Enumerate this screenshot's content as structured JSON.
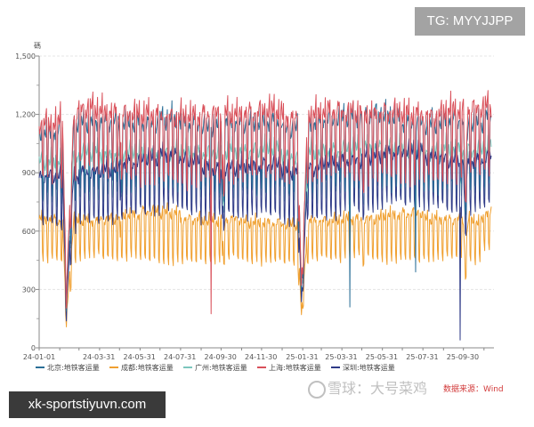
{
  "overlays": {
    "tg_badge": "TG: MYYJJPP",
    "site_badge": "xk-sportstiyuvn.com",
    "watermark": "雪球：大号菜鸡",
    "source": "数据来源：Wind"
  },
  "chart_data": {
    "type": "line",
    "title": "",
    "ylabel": "碼",
    "xlabel": "",
    "ylim": [
      0,
      1500
    ],
    "yticks": [
      0,
      300,
      600,
      900,
      1200,
      1500
    ],
    "ytick_labels": [
      "0",
      "300",
      "600",
      "900",
      "1,200",
      "1,500"
    ],
    "x_start": "2024-01-01",
    "x_end": "2025-11-12",
    "xtick_labels": [
      "24-01-01",
      "24-03-31",
      "24-05-31",
      "24-07-31",
      "24-09-30",
      "24-11-30",
      "25-01-31",
      "25-03-31",
      "25-05-31",
      "25-07-31",
      "25-09-30"
    ],
    "xtick_dates": [
      "2024-01-01",
      "2024-03-31",
      "2024-05-31",
      "2024-07-31",
      "2024-09-30",
      "2024-11-30",
      "2025-01-31",
      "2025-03-31",
      "2025-05-31",
      "2025-07-31",
      "2025-09-30"
    ],
    "grid": true,
    "legend_position": "bottom",
    "months": [
      "2024-01",
      "2024-02",
      "2024-03",
      "2024-04",
      "2024-05",
      "2024-06",
      "2024-07",
      "2024-08",
      "2024-09",
      "2024-10",
      "2024-11",
      "2024-12",
      "2025-01",
      "2025-02",
      "2025-03",
      "2025-04",
      "2025-05",
      "2025-06",
      "2025-07",
      "2025-08",
      "2025-09",
      "2025-10",
      "2025-11"
    ],
    "holidays": [
      {
        "start": "2024-02-05",
        "trough": "2024-02-11",
        "end": "2024-02-22",
        "min_factor": 0.24
      },
      {
        "start": "2024-05-01",
        "trough": "2024-05-02",
        "end": "2024-05-05",
        "min_factor": 0.82
      },
      {
        "start": "2024-10-01",
        "trough": "2024-10-03",
        "end": "2024-10-07",
        "min_factor": 0.72
      },
      {
        "start": "2025-01-24",
        "trough": "2025-01-30",
        "end": "2025-02-09",
        "min_factor": 0.27
      },
      {
        "start": "2025-05-01",
        "trough": "2025-05-02",
        "end": "2025-05-05",
        "min_factor": 0.82
      },
      {
        "start": "2025-10-01",
        "trough": "2025-10-03",
        "end": "2025-10-08",
        "min_factor": 0.72
      }
    ],
    "series": [
      {
        "name": "成都:地铁客运量",
        "color": "#f0a030",
        "weekday_monthly": [
          660,
          650,
          650,
          660,
          680,
          700,
          690,
          660,
          650,
          660,
          640,
          640,
          630,
          650,
          650,
          660,
          660,
          680,
          690,
          660,
          660,
          650,
          700
        ],
        "weekend_monthly": [
          460,
          450,
          480,
          470,
          480,
          460,
          450,
          450,
          460,
          470,
          460,
          450,
          450,
          460,
          470,
          480,
          470,
          460,
          460,
          470,
          470,
          460,
          520
        ],
        "anomalies": []
      },
      {
        "name": "广州:地铁客运量",
        "color": "#7cc6bd",
        "weekday_monthly": [
          950,
          980,
          1000,
          990,
          1000,
          990,
          1000,
          1000,
          1000,
          1010,
          1010,
          1020,
          980,
          1000,
          1010,
          1020,
          1030,
          1020,
          1010,
          1000,
          1020,
          1010,
          1030
        ],
        "weekend_monthly": [
          780,
          760,
          800,
          800,
          810,
          800,
          820,
          800,
          790,
          800,
          810,
          820,
          780,
          800,
          810,
          820,
          830,
          820,
          800,
          800,
          810,
          820,
          830
        ],
        "anomalies": []
      },
      {
        "name": "深圳:地铁客运量",
        "color": "#2e3a87",
        "weekday_monthly": [
          880,
          880,
          900,
          910,
          950,
          970,
          990,
          960,
          920,
          920,
          930,
          940,
          900,
          920,
          950,
          960,
          980,
          1000,
          1010,
          980,
          960,
          960,
          980
        ],
        "weekend_monthly": [
          650,
          620,
          660,
          680,
          700,
          720,
          740,
          720,
          680,
          700,
          700,
          700,
          660,
          680,
          700,
          720,
          740,
          760,
          760,
          740,
          720,
          720,
          740
        ],
        "anomalies": [
          {
            "date": "2025-09-26",
            "value": 40
          }
        ]
      },
      {
        "name": "北京:地铁客运量",
        "color": "#2a6f97",
        "weekday_monthly": [
          1100,
          1150,
          1150,
          1160,
          1150,
          1150,
          1170,
          1150,
          1130,
          1150,
          1150,
          1160,
          1120,
          1150,
          1170,
          1180,
          1200,
          1180,
          1150,
          1140,
          1170,
          1150,
          1180
        ],
        "weekend_monthly": [
          820,
          800,
          850,
          870,
          860,
          850,
          860,
          850,
          840,
          850,
          840,
          850,
          820,
          850,
          870,
          860,
          870,
          860,
          850,
          840,
          860,
          860,
          870
        ],
        "anomalies": [
          {
            "date": "2025-04-13",
            "value": 210
          },
          {
            "date": "2025-07-21",
            "value": 390
          }
        ]
      },
      {
        "name": "上海:地铁客运量",
        "color": "#d9505a",
        "weekday_monthly": [
          1150,
          1200,
          1230,
          1210,
          1200,
          1200,
          1180,
          1190,
          1200,
          1200,
          1210,
          1220,
          1180,
          1200,
          1220,
          1210,
          1200,
          1210,
          1200,
          1190,
          1220,
          1230,
          1240
        ],
        "weekend_monthly": [
          900,
          880,
          950,
          930,
          900,
          880,
          880,
          870,
          880,
          900,
          900,
          920,
          880,
          900,
          920,
          900,
          890,
          900,
          880,
          880,
          900,
          920,
          930
        ],
        "anomalies": [
          {
            "date": "2024-09-16",
            "value": 175
          }
        ]
      }
    ],
    "legend_order": [
      "北京:地铁客运量",
      "成都:地铁客运量",
      "广州:地铁客运量",
      "上海:地铁客运量",
      "深圳:地铁客运量"
    ]
  }
}
